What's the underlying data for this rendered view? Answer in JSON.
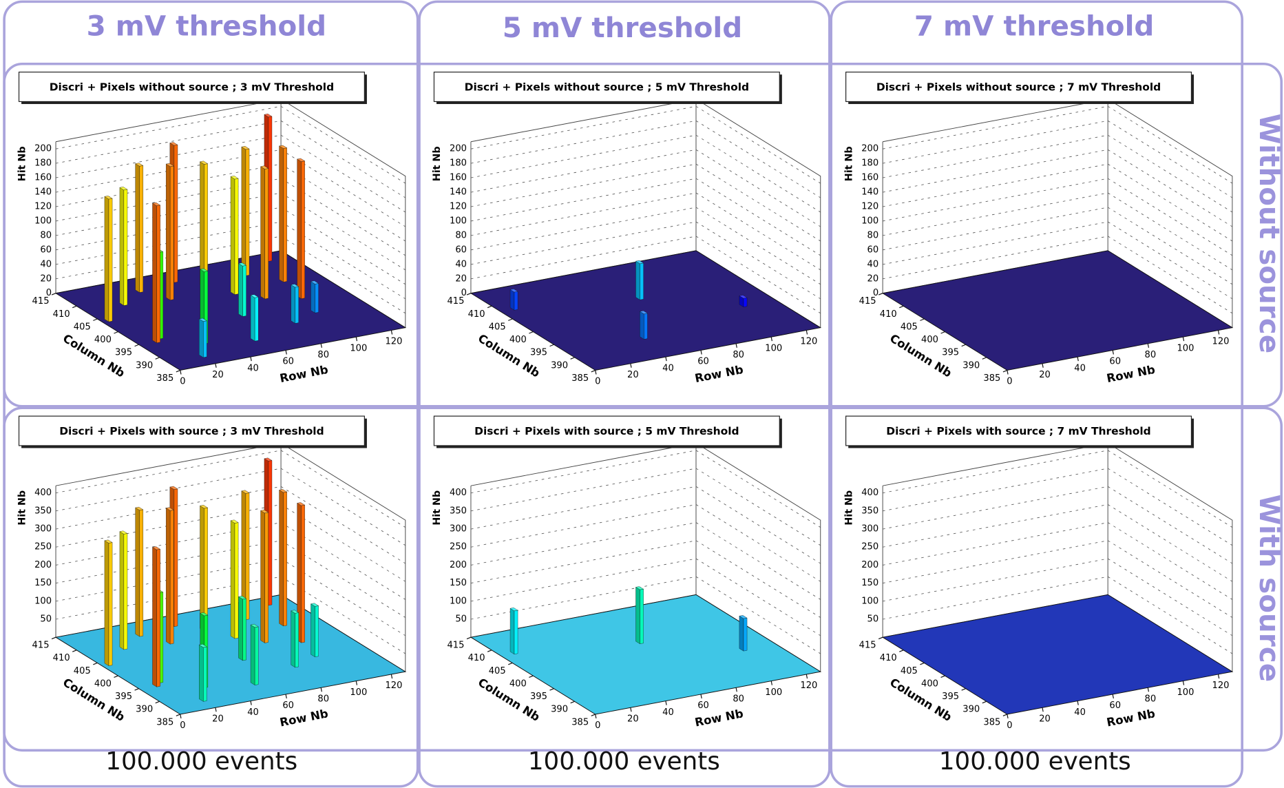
{
  "column_headers": [
    "3 mV threshold",
    "5 mV threshold",
    "7 mV threshold"
  ],
  "row_labels": [
    "Without source",
    "With source"
  ],
  "footers": [
    "100.000 events",
    "100.000 events",
    "100.000 events"
  ],
  "chart_data": [
    {
      "type": "lego3d",
      "title": "Discri + Pixels without source ; 3 mV Threshold",
      "xlabel": "Row Nb",
      "ylabel": "Column Nb",
      "zlabel": "Hit Nb",
      "xlim": [
        0,
        128
      ],
      "ylim": [
        385,
        415
      ],
      "zlim": [
        0,
        210
      ],
      "xticks": [
        0,
        20,
        40,
        60,
        80,
        100,
        120
      ],
      "yticks": [
        385,
        390,
        395,
        400,
        405,
        410,
        415
      ],
      "zticks": [
        0,
        20,
        40,
        60,
        80,
        100,
        120,
        140,
        160,
        180,
        200
      ],
      "floor_color": "#2a1f78",
      "x": [
        4,
        10,
        22,
        14,
        38,
        46,
        60,
        70,
        78,
        88,
        96,
        104,
        108,
        116,
        30,
        54,
        84,
        100,
        66,
        20
      ],
      "y": [
        404,
        395,
        408,
        396,
        411,
        407,
        412,
        409,
        405,
        402,
        410,
        400,
        406,
        413,
        392,
        390,
        393,
        395,
        398,
        388
      ],
      "values": [
        170,
        190,
        160,
        120,
        175,
        185,
        190,
        170,
        160,
        180,
        175,
        190,
        185,
        200,
        100,
        60,
        50,
        40,
        70,
        50
      ]
    },
    {
      "type": "lego3d",
      "title": "Discri + Pixels without source ; 5 mV Threshold",
      "xlabel": "Row Nb",
      "ylabel": "Column Nb",
      "zlabel": "Hit Nb",
      "xlim": [
        0,
        128
      ],
      "ylim": [
        385,
        415
      ],
      "zlim": [
        0,
        210
      ],
      "xticks": [
        0,
        20,
        40,
        60,
        80,
        100,
        120
      ],
      "yticks": [
        385,
        390,
        395,
        400,
        405,
        410,
        415
      ],
      "zticks": [
        0,
        20,
        40,
        60,
        80,
        100,
        120,
        140,
        160,
        180,
        200
      ],
      "floor_color": "#2a1f78",
      "x": [
        8,
        70,
        44,
        110
      ],
      "y": [
        408,
        404,
        392,
        396
      ],
      "values": [
        25,
        50,
        35,
        12
      ]
    },
    {
      "type": "lego3d",
      "title": "Discri + Pixels without source ; 7 mV Threshold",
      "xlabel": "Row Nb",
      "ylabel": "Column Nb",
      "zlabel": "Hit Nb",
      "xlim": [
        0,
        128
      ],
      "ylim": [
        385,
        415
      ],
      "zlim": [
        0,
        210
      ],
      "xticks": [
        0,
        20,
        40,
        60,
        80,
        100,
        120
      ],
      "yticks": [
        385,
        390,
        395,
        400,
        405,
        410,
        415
      ],
      "zticks": [
        0,
        20,
        40,
        60,
        80,
        100,
        120,
        140,
        160,
        180,
        200
      ],
      "floor_color": "#2a1f78",
      "x": [],
      "y": [],
      "values": []
    },
    {
      "type": "lego3d",
      "title": "Discri + Pixels with source ; 3 mV Threshold",
      "xlabel": "Row Nb",
      "ylabel": "Column Nb",
      "zlabel": "Hit Nb",
      "xlim": [
        0,
        128
      ],
      "ylim": [
        385,
        415
      ],
      "zlim": [
        0,
        420
      ],
      "xticks": [
        0,
        20,
        40,
        60,
        80,
        100,
        120
      ],
      "yticks": [
        385,
        390,
        395,
        400,
        405,
        410,
        415
      ],
      "zticks": [
        50,
        100,
        150,
        200,
        250,
        300,
        350,
        400
      ],
      "floor_color": "#38b8e0",
      "x": [
        4,
        10,
        22,
        14,
        38,
        46,
        60,
        70,
        78,
        88,
        96,
        104,
        108,
        116,
        30,
        54,
        84,
        100,
        66,
        20
      ],
      "y": [
        404,
        395,
        408,
        396,
        411,
        407,
        412,
        409,
        405,
        402,
        410,
        400,
        406,
        413,
        392,
        390,
        393,
        395,
        398,
        388
      ],
      "values": [
        340,
        380,
        320,
        250,
        350,
        370,
        380,
        340,
        320,
        360,
        350,
        380,
        370,
        400,
        200,
        160,
        150,
        140,
        170,
        150
      ]
    },
    {
      "type": "lego3d",
      "title": "Discri + Pixels with source ; 5 mV Threshold",
      "xlabel": "Row Nb",
      "ylabel": "Column Nb",
      "zlabel": "Hit Nb",
      "xlim": [
        0,
        128
      ],
      "ylim": [
        385,
        415
      ],
      "zlim": [
        0,
        420
      ],
      "xticks": [
        0,
        20,
        40,
        60,
        80,
        100,
        120
      ],
      "yticks": [
        385,
        390,
        395,
        400,
        405,
        410,
        415
      ],
      "zticks": [
        50,
        100,
        150,
        200,
        250,
        300,
        350,
        400
      ],
      "floor_color": "#3fc6e6",
      "x": [
        8,
        70,
        110
      ],
      "y": [
        408,
        404,
        396
      ],
      "values": [
        120,
        150,
        90
      ]
    },
    {
      "type": "lego3d",
      "title": "Discri + Pixels with source ; 7 mV Threshold",
      "xlabel": "Row Nb",
      "ylabel": "Column Nb",
      "zlabel": "Hit Nb",
      "xlim": [
        0,
        128
      ],
      "ylim": [
        385,
        415
      ],
      "zlim": [
        0,
        420
      ],
      "xticks": [
        0,
        20,
        40,
        60,
        80,
        100,
        120
      ],
      "yticks": [
        385,
        390,
        395,
        400,
        405,
        410,
        415
      ],
      "zticks": [
        50,
        100,
        150,
        200,
        250,
        300,
        350,
        400
      ],
      "floor_color": "#2237b8",
      "x": [],
      "y": [],
      "values": []
    }
  ]
}
